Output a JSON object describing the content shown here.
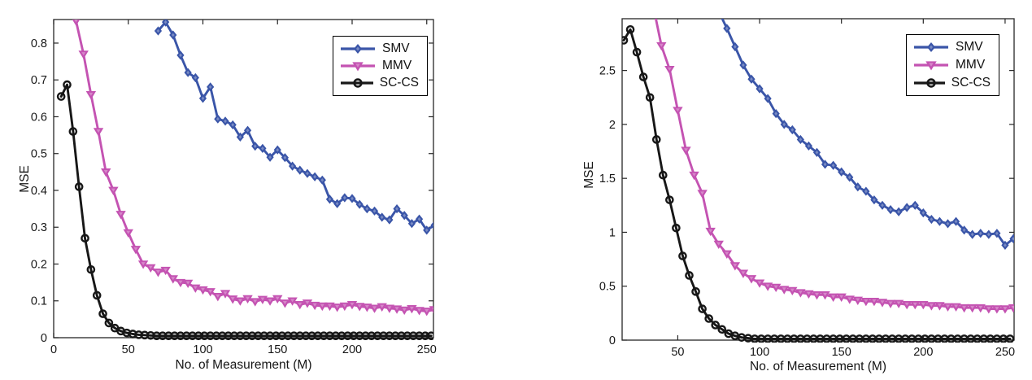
{
  "figure": {
    "background": "#ffffff",
    "axis_color": "#262626",
    "text_color": "#161616"
  },
  "legend": {
    "entries": [
      "SMV",
      "MMV",
      "SC-CS"
    ],
    "position": "top-right"
  },
  "chart_data": [
    {
      "type": "line",
      "title": "",
      "xlabel": "No. of Measurement (M)",
      "ylabel": "MSE",
      "xlim": [
        0,
        254.5
      ],
      "ylim": [
        0,
        0.864
      ],
      "xticks": [
        0,
        50,
        100,
        150,
        200,
        250
      ],
      "xtick_labels": [
        "0",
        "50",
        "100",
        "150",
        "200",
        "250"
      ],
      "yticks": [
        0,
        0.1,
        0.2,
        0.3,
        0.4,
        0.5,
        0.6,
        0.7,
        0.8
      ],
      "ytick_labels": [
        "0",
        "0.1",
        "0.2",
        "0.3",
        "0.4",
        "0.5",
        "0.6",
        "0.7",
        "0.8"
      ],
      "grid": false,
      "legend_position": "top-right",
      "series": [
        {
          "name": "SMV",
          "color": "#3A55A8",
          "marker": "diamond",
          "x": [
            70,
            75,
            80,
            85,
            90,
            95,
            100,
            105,
            110,
            115,
            120,
            125,
            130,
            135,
            140,
            145,
            150,
            155,
            160,
            165,
            170,
            175,
            180,
            185,
            190,
            195,
            200,
            205,
            210,
            215,
            220,
            225,
            230,
            235,
            240,
            245,
            250,
            255
          ],
          "y": [
            0.833,
            0.857,
            0.822,
            0.767,
            0.72,
            0.706,
            0.65,
            0.681,
            0.594,
            0.588,
            0.578,
            0.545,
            0.563,
            0.52,
            0.514,
            0.49,
            0.51,
            0.489,
            0.466,
            0.455,
            0.446,
            0.437,
            0.428,
            0.376,
            0.364,
            0.38,
            0.378,
            0.362,
            0.35,
            0.344,
            0.327,
            0.32,
            0.35,
            0.332,
            0.31,
            0.322,
            0.292,
            0.305
          ]
        },
        {
          "name": "MMV",
          "color": "#C453B2",
          "marker": "triangle-down",
          "x": [
            10,
            15,
            20,
            25,
            30,
            35,
            40,
            45,
            50,
            55,
            60,
            65,
            70,
            75,
            80,
            85,
            90,
            95,
            100,
            105,
            110,
            115,
            120,
            125,
            130,
            135,
            140,
            145,
            150,
            155,
            160,
            165,
            170,
            175,
            180,
            185,
            190,
            195,
            200,
            205,
            210,
            215,
            220,
            225,
            230,
            235,
            240,
            245,
            250,
            255
          ],
          "y": [
            0.96,
            0.86,
            0.77,
            0.66,
            0.56,
            0.45,
            0.4,
            0.335,
            0.285,
            0.24,
            0.2,
            0.19,
            0.178,
            0.183,
            0.16,
            0.15,
            0.148,
            0.135,
            0.13,
            0.125,
            0.112,
            0.12,
            0.105,
            0.1,
            0.106,
            0.098,
            0.104,
            0.1,
            0.106,
            0.094,
            0.1,
            0.09,
            0.094,
            0.088,
            0.086,
            0.086,
            0.083,
            0.086,
            0.09,
            0.085,
            0.083,
            0.08,
            0.084,
            0.08,
            0.078,
            0.075,
            0.079,
            0.074,
            0.072,
            0.076
          ]
        },
        {
          "name": "SC-CS",
          "color": "#171717",
          "marker": "circle-open",
          "x": [
            5,
            9,
            13,
            17,
            21,
            25,
            29,
            33,
            37,
            41,
            45,
            49,
            53,
            57,
            61,
            65,
            69,
            73,
            77,
            81,
            85,
            89,
            93,
            97,
            101,
            105,
            109,
            113,
            117,
            121,
            125,
            129,
            133,
            137,
            141,
            145,
            149,
            153,
            157,
            161,
            165,
            169,
            173,
            177,
            181,
            185,
            189,
            193,
            197,
            201,
            205,
            209,
            213,
            217,
            221,
            225,
            229,
            233,
            237,
            241,
            245,
            249,
            253
          ],
          "y": [
            0.655,
            0.687,
            0.56,
            0.41,
            0.27,
            0.185,
            0.115,
            0.065,
            0.04,
            0.026,
            0.018,
            0.013,
            0.01,
            0.008,
            0.007,
            0.006,
            0.005,
            0.005,
            0.005,
            0.005,
            0.005,
            0.005,
            0.005,
            0.005,
            0.005,
            0.005,
            0.005,
            0.005,
            0.005,
            0.005,
            0.005,
            0.005,
            0.005,
            0.005,
            0.005,
            0.005,
            0.005,
            0.005,
            0.005,
            0.005,
            0.005,
            0.005,
            0.005,
            0.005,
            0.005,
            0.005,
            0.005,
            0.005,
            0.005,
            0.005,
            0.005,
            0.005,
            0.005,
            0.005,
            0.005,
            0.005,
            0.005,
            0.005,
            0.005,
            0.005,
            0.005,
            0.005,
            0.005
          ]
        }
      ]
    },
    {
      "type": "line",
      "title": "",
      "xlabel": "No. of Measurement (M)",
      "ylabel": "MSE",
      "xlim": [
        16,
        255.5
      ],
      "ylim": [
        0,
        2.98
      ],
      "xticks": [
        50,
        100,
        150,
        200,
        250
      ],
      "xtick_labels": [
        "50",
        "100",
        "150",
        "200",
        "250"
      ],
      "yticks": [
        0,
        0.5,
        1,
        1.5,
        2,
        2.5
      ],
      "ytick_labels": [
        "0",
        "0.5",
        "1",
        "1.5",
        "2",
        "2.5"
      ],
      "grid": false,
      "legend_position": "top-right",
      "series": [
        {
          "name": "SMV",
          "color": "#3A55A8",
          "marker": "diamond",
          "x": [
            75,
            80,
            85,
            90,
            95,
            100,
            105,
            110,
            115,
            120,
            125,
            130,
            135,
            140,
            145,
            150,
            155,
            160,
            165,
            170,
            175,
            180,
            185,
            190,
            195,
            200,
            205,
            210,
            215,
            220,
            225,
            230,
            235,
            240,
            245,
            250,
            255
          ],
          "y": [
            3.05,
            2.89,
            2.72,
            2.55,
            2.42,
            2.33,
            2.24,
            2.1,
            2.0,
            1.95,
            1.86,
            1.8,
            1.74,
            1.63,
            1.62,
            1.56,
            1.51,
            1.42,
            1.38,
            1.3,
            1.25,
            1.21,
            1.19,
            1.23,
            1.25,
            1.18,
            1.12,
            1.1,
            1.08,
            1.1,
            1.02,
            0.98,
            0.99,
            0.98,
            0.99,
            0.88,
            0.94
          ]
        },
        {
          "name": "MMV",
          "color": "#C453B2",
          "marker": "triangle-down",
          "x": [
            35,
            40,
            45,
            50,
            55,
            60,
            65,
            70,
            75,
            80,
            85,
            90,
            95,
            100,
            105,
            110,
            115,
            120,
            125,
            130,
            135,
            140,
            145,
            150,
            155,
            160,
            165,
            170,
            175,
            180,
            185,
            190,
            195,
            200,
            205,
            210,
            215,
            220,
            225,
            230,
            235,
            240,
            245,
            250,
            255
          ],
          "y": [
            3.1,
            2.73,
            2.51,
            2.13,
            1.76,
            1.53,
            1.36,
            1.01,
            0.89,
            0.8,
            0.69,
            0.62,
            0.57,
            0.53,
            0.5,
            0.49,
            0.47,
            0.46,
            0.44,
            0.43,
            0.42,
            0.42,
            0.4,
            0.4,
            0.38,
            0.37,
            0.36,
            0.36,
            0.35,
            0.34,
            0.34,
            0.33,
            0.33,
            0.33,
            0.32,
            0.32,
            0.31,
            0.31,
            0.3,
            0.3,
            0.3,
            0.29,
            0.29,
            0.29,
            0.3
          ]
        },
        {
          "name": "SC-CS",
          "color": "#171717",
          "marker": "circle-open",
          "x": [
            17,
            21,
            25,
            29,
            33,
            37,
            41,
            45,
            49,
            53,
            57,
            61,
            65,
            69,
            73,
            77,
            81,
            85,
            89,
            93,
            97,
            101,
            105,
            109,
            113,
            117,
            121,
            125,
            129,
            133,
            137,
            141,
            145,
            149,
            153,
            157,
            161,
            165,
            169,
            173,
            177,
            181,
            185,
            189,
            193,
            197,
            201,
            205,
            209,
            213,
            217,
            221,
            225,
            229,
            233,
            237,
            241,
            245,
            249,
            253
          ],
          "y": [
            2.78,
            2.88,
            2.67,
            2.44,
            2.25,
            1.86,
            1.53,
            1.3,
            1.04,
            0.78,
            0.6,
            0.45,
            0.29,
            0.2,
            0.14,
            0.1,
            0.06,
            0.04,
            0.025,
            0.018,
            0.012,
            0.012,
            0.012,
            0.012,
            0.012,
            0.012,
            0.012,
            0.012,
            0.012,
            0.012,
            0.012,
            0.012,
            0.012,
            0.012,
            0.012,
            0.012,
            0.012,
            0.012,
            0.012,
            0.012,
            0.012,
            0.012,
            0.012,
            0.012,
            0.012,
            0.012,
            0.012,
            0.012,
            0.012,
            0.012,
            0.012,
            0.012,
            0.012,
            0.012,
            0.012,
            0.012,
            0.012,
            0.012,
            0.012,
            0.012
          ]
        }
      ]
    }
  ]
}
